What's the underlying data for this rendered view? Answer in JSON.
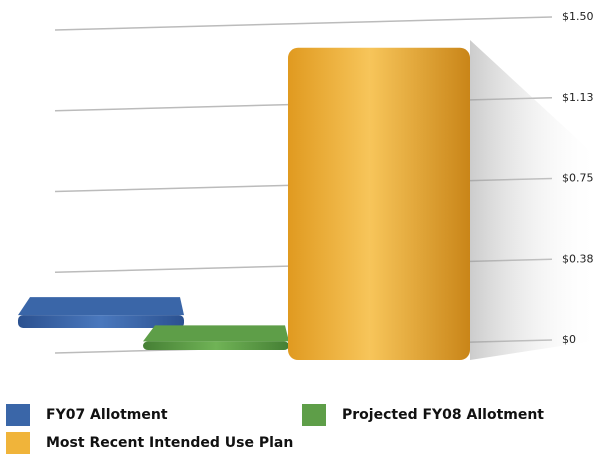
{
  "chart_data": {
    "type": "bar3d",
    "categories": [
      "FY07 Allotment",
      "Projected FY08 Allotment",
      "Most Recent Intended Use Plan"
    ],
    "values": [
      0.06,
      0.04,
      1.45
    ],
    "colors": [
      "#3a66a8",
      "#5e9e48",
      "#f0b43a"
    ],
    "ylim": [
      0,
      1.5
    ],
    "yticks": [
      {
        "value": 0,
        "label": "$0"
      },
      {
        "value": 0.375,
        "label": "$0.38"
      },
      {
        "value": 0.75,
        "label": "$0.75"
      },
      {
        "value": 1.125,
        "label": "$1.13"
      },
      {
        "value": 1.5,
        "label": "$1.50"
      }
    ],
    "grid": true
  }
}
